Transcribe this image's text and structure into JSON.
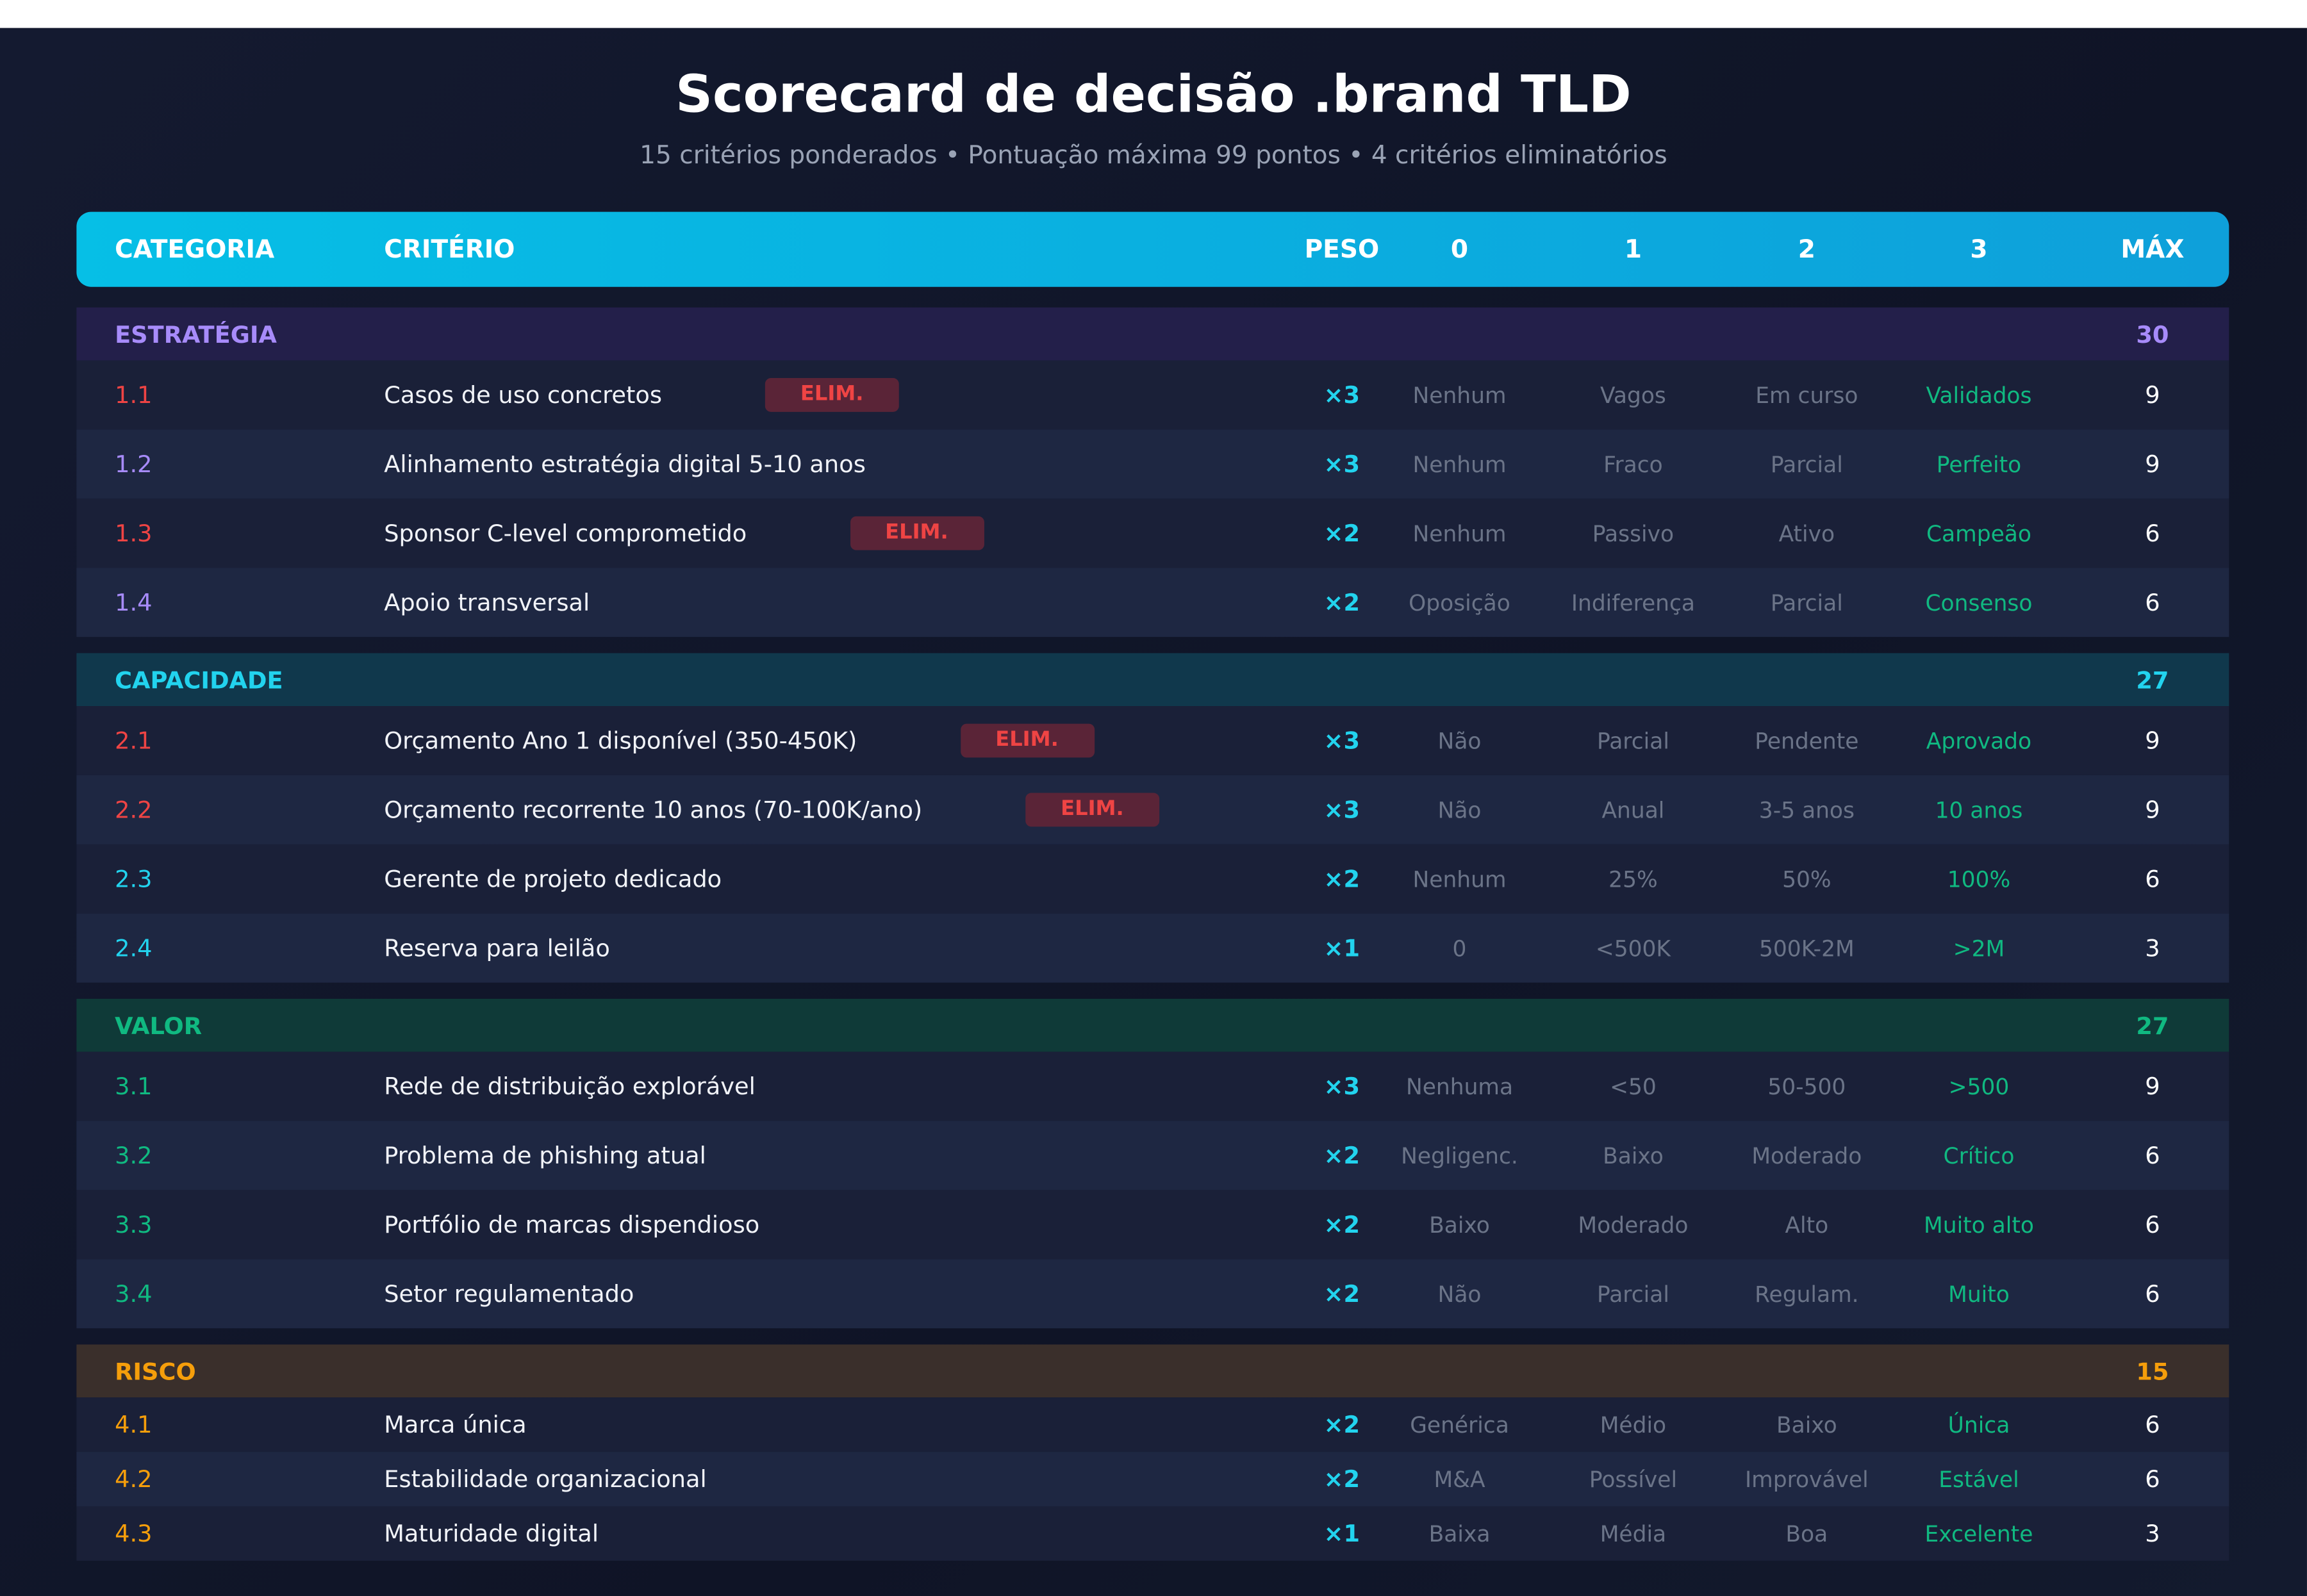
{
  "header": {
    "title": "Scorecard de decisão .brand TLD",
    "subtitle": "15 critérios ponderados • Pontuação máxima 99 pontos • 4 critérios eliminatórios"
  },
  "table": {
    "columns": [
      "CATEGORIA",
      "CRITÉRIO",
      "PESO",
      "0",
      "1",
      "2",
      "3",
      "MÁX"
    ],
    "groups": [
      {
        "name": "ESTRATÉGIA",
        "total": 30,
        "color": "#a78bfa",
        "background": "#231f4a",
        "rows": [
          {
            "id": "1.1",
            "criterion": "Casos de uso concretos",
            "tag": "ELIM.",
            "weight": "×3",
            "levels": [
              "Nenhum",
              "Vagos",
              "Em curso",
              "Validados"
            ],
            "max": 9
          },
          {
            "id": "1.2",
            "criterion": "Alinhamento estratégia digital 5-10 anos",
            "weight": "×3",
            "levels": [
              "Nenhum",
              "Fraco",
              "Parcial",
              "Perfeito"
            ],
            "max": 9
          },
          {
            "id": "1.3",
            "criterion": "Sponsor C-level comprometido",
            "tag": "ELIM.",
            "weight": "×2",
            "levels": [
              "Nenhum",
              "Passivo",
              "Ativo",
              "Campeão"
            ],
            "max": 6
          },
          {
            "id": "1.4",
            "criterion": "Apoio transversal",
            "weight": "×2",
            "levels": [
              "Oposição",
              "Indiferença",
              "Parcial",
              "Consenso"
            ],
            "max": 6
          }
        ]
      },
      {
        "name": "CAPACIDADE",
        "total": 27,
        "color": "#22d3ee",
        "background": "#10384c",
        "rows": [
          {
            "id": "2.1",
            "criterion": "Orçamento Ano 1 disponível (350-450K)",
            "tag": "ELIM.",
            "weight": "×3",
            "levels": [
              "Não",
              "Parcial",
              "Pendente",
              "Aprovado"
            ],
            "max": 9
          },
          {
            "id": "2.2",
            "criterion": "Orçamento recorrente 10 anos (70-100K/ano)",
            "tag": "ELIM.",
            "weight": "×3",
            "levels": [
              "Não",
              "Anual",
              "3-5 anos",
              "10 anos"
            ],
            "max": 9
          },
          {
            "id": "2.3",
            "criterion": "Gerente de projeto dedicado",
            "weight": "×2",
            "levels": [
              "Nenhum",
              "25%",
              "50%",
              "100%"
            ],
            "max": 6
          },
          {
            "id": "2.4",
            "criterion": "Reserva para leilão",
            "weight": "×1",
            "levels": [
              "0",
              "<500K",
              "500K-2M",
              ">2M"
            ],
            "max": 3
          }
        ]
      },
      {
        "name": "VALOR",
        "total": 27,
        "color": "#10b981",
        "background": "#0f3a38",
        "rows": [
          {
            "id": "3.1",
            "criterion": "Rede de distribuição explorável",
            "weight": "×3",
            "levels": [
              "Nenhuma",
              "<50",
              "50-500",
              ">500"
            ],
            "max": 9
          },
          {
            "id": "3.2",
            "criterion": "Problema de phishing atual",
            "weight": "×2",
            "levels": [
              "Negligenc.",
              "Baixo",
              "Moderado",
              "Crítico"
            ],
            "max": 6
          },
          {
            "id": "3.3",
            "criterion": "Portfólio de marcas dispendioso",
            "weight": "×2",
            "levels": [
              "Baixo",
              "Moderado",
              "Alto",
              "Muito alto"
            ],
            "max": 6
          },
          {
            "id": "3.4",
            "criterion": "Setor regulamentado",
            "weight": "×2",
            "levels": [
              "Não",
              "Parcial",
              "Regulam.",
              "Muito"
            ],
            "max": 6
          }
        ]
      },
      {
        "name": "RISCO",
        "total": 15,
        "color": "#f59e0b",
        "background": "#3a2f2b",
        "rows": [
          {
            "id": "4.1",
            "criterion": "Marca única",
            "weight": "×2",
            "levels": [
              "Genérica",
              "Médio",
              "Baixo",
              "Única"
            ],
            "max": 6
          },
          {
            "id": "4.2",
            "criterion": "Estabilidade organizacional",
            "weight": "×2",
            "levels": [
              "M&A",
              "Possível",
              "Improvável",
              "Estável"
            ],
            "max": 6
          },
          {
            "id": "4.3",
            "criterion": "Maturidade digital",
            "weight": "×1",
            "levels": [
              "Baixa",
              "Média",
              "Boa",
              "Excelente"
            ],
            "max": 3
          }
        ]
      }
    ]
  }
}
